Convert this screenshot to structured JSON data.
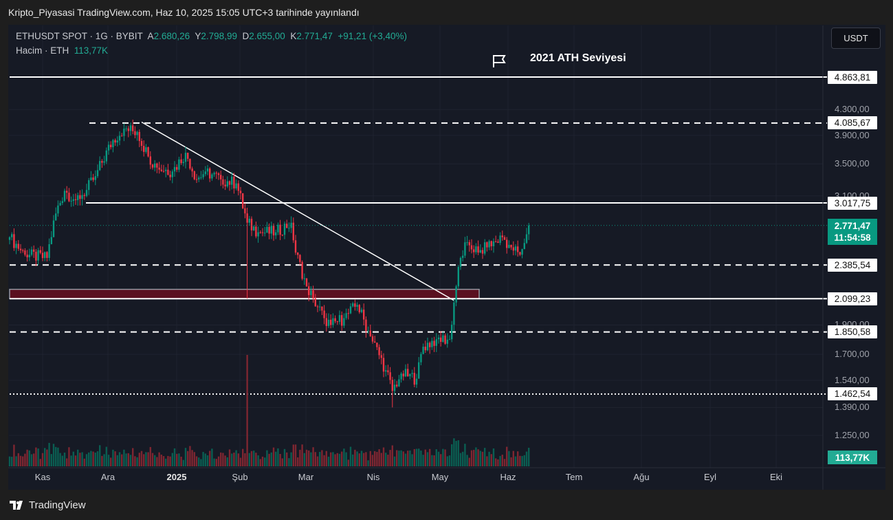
{
  "header": {
    "published": "Kripto_Piyasasi TradingView.com, Haz 10, 2025 15:05 UTC+3 tarihinde yayınlandı"
  },
  "legend": {
    "symbol": "ETHUSDT SPOT · 1G · BYBIT",
    "o_label": "A",
    "o": "2.680,26",
    "h_label": "Y",
    "h": "2.798,99",
    "l_label": "D",
    "l": "2.655,00",
    "c_label": "K",
    "c": "2.771,47",
    "change": "+91,21 (+3,40%)",
    "volume_label": "Hacim · ETH",
    "volume": "113,77K"
  },
  "currency_button": "USDT",
  "annotation": {
    "text": "2021 ATH Seviyesi",
    "icon": "flag-icon"
  },
  "brand": "TradingView",
  "colors": {
    "up": "#089981",
    "down": "#f23645",
    "bg": "#161a25"
  },
  "chart_data": {
    "type": "candlestick",
    "scale": "log",
    "x_ticks": [
      "Kas",
      "Ara",
      "2025",
      "Şub",
      "Mar",
      "Nis",
      "May",
      "Haz",
      "Tem",
      "Ağu",
      "Eyl",
      "Eki"
    ],
    "y_ticks": [
      "4.300,00",
      "3.900,00",
      "3.500,00",
      "3.100,00",
      "1.900,00",
      "1.700,00",
      "1.540,00",
      "1.390,00",
      "1.250,00"
    ],
    "y_tick_values": [
      4300,
      3900,
      3500,
      3100,
      1900,
      1700,
      1540,
      1390,
      1250
    ],
    "levels": [
      {
        "value": 4863.81,
        "label": "4.863,81",
        "style": "solid"
      },
      {
        "value": 4085.67,
        "label": "4.085,67",
        "style": "dashed"
      },
      {
        "value": 3017.75,
        "label": "3.017,75",
        "style": "solid"
      },
      {
        "value": 2385.54,
        "label": "2.385,54",
        "style": "dashed"
      },
      {
        "value": 2099.23,
        "label": "2.099,23",
        "style": "solid"
      },
      {
        "value": 1850.58,
        "label": "1.850,58",
        "style": "dashed"
      },
      {
        "value": 1462.54,
        "label": "1.462,54",
        "style": "dotted"
      }
    ],
    "zone": {
      "from": 2099.23,
      "to": 2175
    },
    "trendline": {
      "from": {
        "day": 60,
        "price": 4100
      },
      "to": {
        "day": 202,
        "price": 2085
      }
    },
    "last_price": {
      "value": 2771.47,
      "label": "2.771,47",
      "countdown": "11:54:58"
    },
    "last_volume_label": "113,77K",
    "close_anchors": [
      [
        0,
        2650
      ],
      [
        7,
        2480
      ],
      [
        17,
        2450
      ],
      [
        21,
        2900
      ],
      [
        25,
        3160
      ],
      [
        30,
        3050
      ],
      [
        35,
        3170
      ],
      [
        39,
        3340
      ],
      [
        47,
        3830
      ],
      [
        52,
        4000
      ],
      [
        58,
        3950
      ],
      [
        63,
        3600
      ],
      [
        67,
        3450
      ],
      [
        74,
        3400
      ],
      [
        80,
        3650
      ],
      [
        85,
        3300
      ],
      [
        89,
        3400
      ],
      [
        96,
        3300
      ],
      [
        103,
        3250
      ],
      [
        108,
        2800
      ],
      [
        113,
        2700
      ],
      [
        121,
        2700
      ],
      [
        128,
        2800
      ],
      [
        130,
        2500
      ],
      [
        135,
        2200
      ],
      [
        138,
        2100
      ],
      [
        143,
        1950
      ],
      [
        146,
        1900
      ],
      [
        152,
        1950
      ],
      [
        158,
        2050
      ],
      [
        164,
        1820
      ],
      [
        171,
        1600
      ],
      [
        174,
        1480
      ],
      [
        178,
        1580
      ],
      [
        185,
        1550
      ],
      [
        188,
        1750
      ],
      [
        194,
        1800
      ],
      [
        200,
        1800
      ],
      [
        203,
        2200
      ],
      [
        205,
        2450
      ],
      [
        208,
        2600
      ],
      [
        213,
        2500
      ],
      [
        217,
        2550
      ],
      [
        224,
        2650
      ],
      [
        228,
        2550
      ],
      [
        232,
        2480
      ],
      [
        235,
        2680
      ],
      [
        236,
        2771
      ]
    ]
  }
}
